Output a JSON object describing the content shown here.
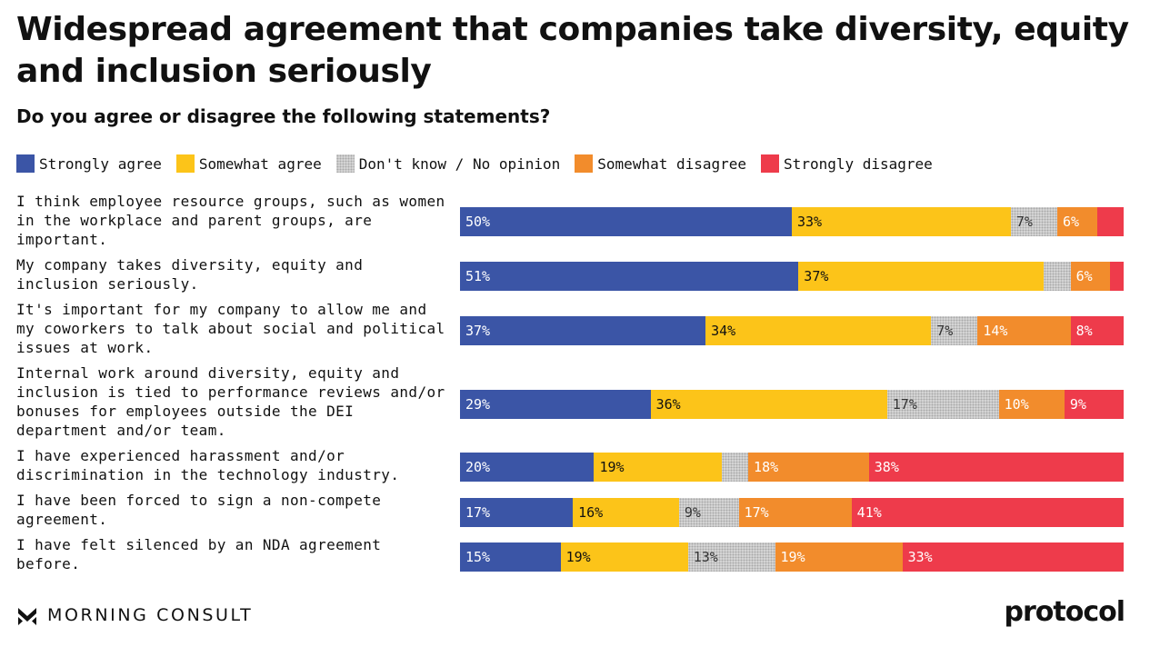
{
  "colors": {
    "strongly_agree": "#3b55a6",
    "somewhat_agree": "#fcc419",
    "no_opinion": "#d6d6d6",
    "somewhat_disagree": "#f28c2c",
    "strongly_disagree": "#ee3b4b"
  },
  "brand": {
    "source": "MORNING CONSULT",
    "publisher": "protocol"
  },
  "chart_data": {
    "type": "bar",
    "orientation": "horizontal",
    "stacked": true,
    "title": "Widespread agreement that companies take diversity, equity and inclusion seriously",
    "subtitle": "Do you agree or disagree the following statements?",
    "legend_position": "top",
    "grid": false,
    "xlim": [
      0,
      100
    ],
    "unit": "%",
    "categories": [
      "I think employee resource groups, such as women in the workplace and parent groups, are important.",
      "My company takes diversity, equity and inclusion seriously.",
      "It's important for my company to allow me and my coworkers to talk about social and political issues at work.",
      "Internal work around diversity, equity and inclusion is tied to performance reviews and/or bonuses for employees outside the DEI department and/or team.",
      "I have experienced harassment and/or discrimination in the technology industry.",
      "I have been forced to sign a non-compete agreement.",
      "I have felt silenced by an NDA agreement before."
    ],
    "series": [
      {
        "name": "Strongly agree",
        "values": [
          50,
          51,
          37,
          29,
          20,
          17,
          15
        ],
        "labels": [
          "50%",
          "51%",
          "37%",
          "29%",
          "20%",
          "17%",
          "15%"
        ]
      },
      {
        "name": "Somewhat agree",
        "values": [
          33,
          37,
          34,
          36,
          19,
          16,
          19
        ],
        "labels": [
          "33%",
          "37%",
          "34%",
          "36%",
          "19%",
          "16%",
          "19%"
        ]
      },
      {
        "name": "Don't know / No opinion",
        "values": [
          7,
          4,
          7,
          17,
          4,
          9,
          13
        ],
        "labels": [
          "7%",
          "",
          "7%",
          "17%",
          "",
          "9%",
          "13%"
        ]
      },
      {
        "name": "Somewhat disagree",
        "values": [
          6,
          6,
          14,
          10,
          18,
          17,
          19
        ],
        "labels": [
          "6%",
          "6%",
          "14%",
          "10%",
          "18%",
          "17%",
          "19%"
        ]
      },
      {
        "name": "Strongly disagree",
        "values": [
          4,
          2,
          8,
          9,
          38,
          41,
          33
        ],
        "labels": [
          "",
          "",
          "8%",
          "9%",
          "38%",
          "41%",
          "33%"
        ]
      }
    ]
  }
}
